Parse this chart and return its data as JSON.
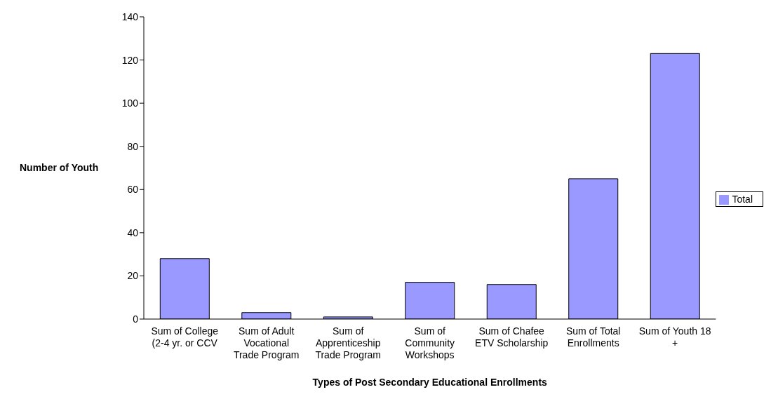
{
  "chart_data": {
    "type": "bar",
    "xlabel": "Types of Post Secondary Educational Enrollments",
    "ylabel": "Number of Youth",
    "categories": [
      "Sum of College (2-4 yr. or CCV",
      "Sum of Adult Vocational Trade Program",
      "Sum of Apprenticeship Trade Program",
      "Sum of Community Workshops",
      "Sum of Chafee ETV Scholarship",
      "Sum of Total Enrollments",
      "Sum of Youth 18 +"
    ],
    "series": [
      {
        "name": "Total",
        "color": "#9999ff",
        "values": [
          28,
          3,
          1,
          17,
          16,
          65,
          123
        ]
      }
    ],
    "ylim": [
      0,
      140
    ],
    "yticks": [
      0,
      20,
      40,
      60,
      80,
      100,
      120,
      140
    ],
    "legend": "right"
  }
}
